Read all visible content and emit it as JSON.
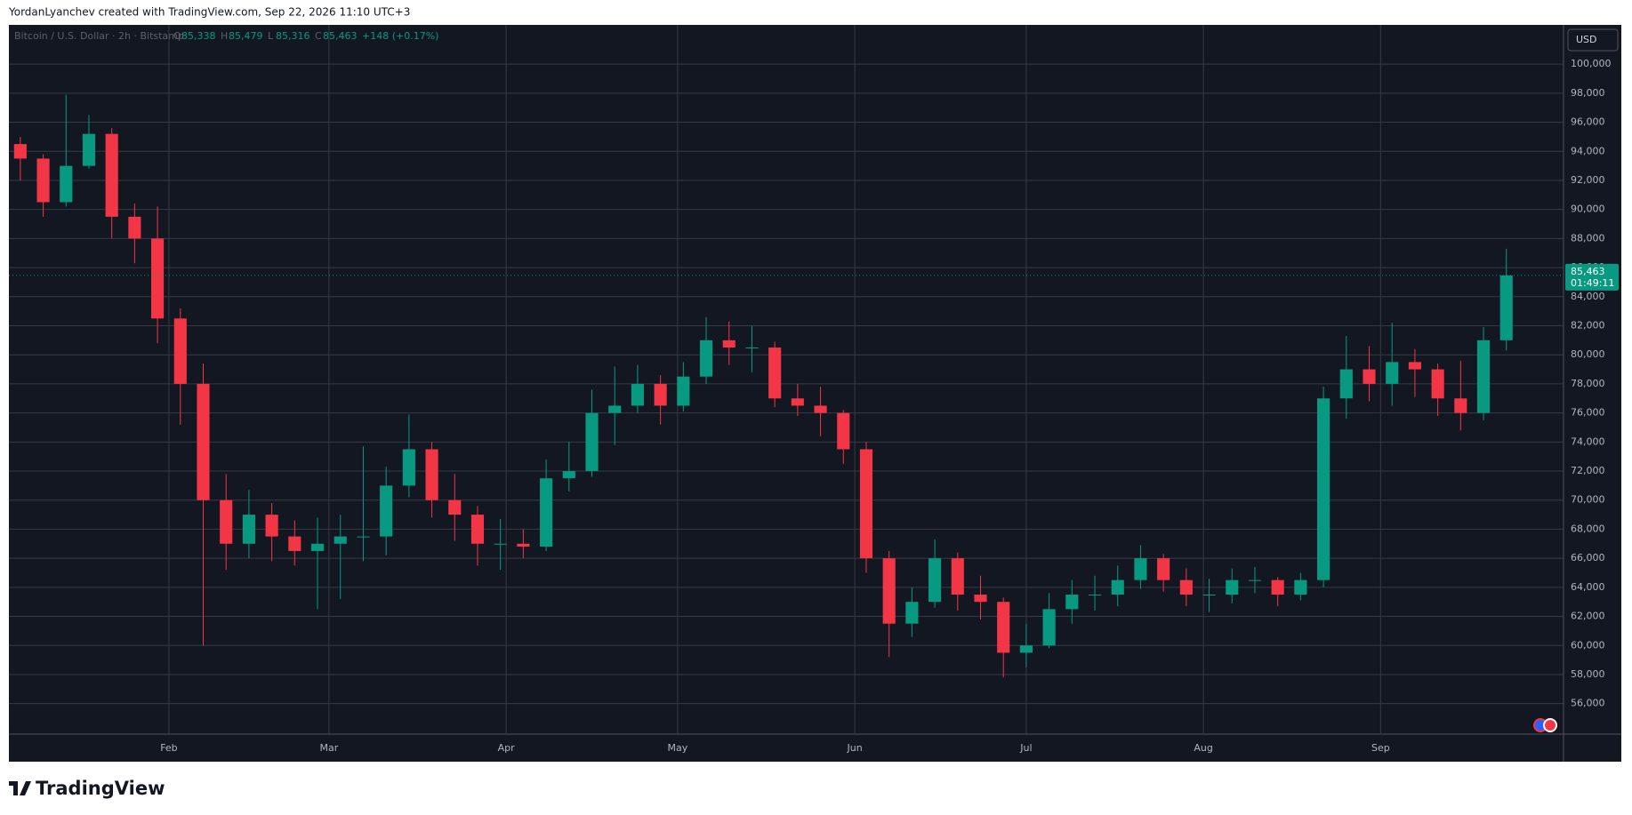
{
  "header": {
    "credit": "YordanLyanchev created with TradingView.com, Sep 22, 2026 11:10 UTC+3",
    "symbol": "Bitcoin / U.S. Dollar · 2h · Bitstamp",
    "ohlc": [
      {
        "label": "O",
        "value": "85,338"
      },
      {
        "label": "H",
        "value": "85,479"
      },
      {
        "label": "L",
        "value": "85,316"
      },
      {
        "label": "C",
        "value": "85,463"
      }
    ],
    "change": "+148 (+0.17%)",
    "currency": "USD",
    "last_price_label": "85,463",
    "countdown": "01:49:11",
    "brand": "TradingView"
  },
  "chart_data": {
    "type": "candlestick",
    "up_color": "#089981",
    "down_color": "#f23645",
    "grid": true,
    "open": [
      94500,
      93500,
      90500,
      93000,
      95200,
      89500,
      88000,
      82500,
      78000,
      70000,
      67000,
      69000,
      67500,
      66500,
      67000,
      67500,
      67500,
      71000,
      73500,
      70000,
      69000,
      67000,
      67000,
      66800,
      71500,
      72000,
      76000,
      76500,
      78000,
      76500,
      78500,
      81000,
      80500,
      80500,
      77000,
      76500,
      76000,
      73500,
      66000,
      61500,
      63000,
      66000,
      63500,
      63000,
      59500,
      60000,
      62500,
      63500,
      63500,
      64500,
      66000,
      64500,
      63500,
      63500,
      64500,
      64500,
      63500,
      64500,
      77000,
      79000,
      78000,
      79500,
      79000,
      77000,
      76000,
      81000
    ],
    "high": [
      95000,
      93800,
      97900,
      96500,
      95600,
      90400,
      90200,
      83200,
      79400,
      71800,
      70700,
      69800,
      68600,
      68800,
      69000,
      73700,
      72300,
      75900,
      74000,
      71800,
      69600,
      68700,
      68000,
      72800,
      74000,
      77600,
      79200,
      79300,
      78600,
      79500,
      82600,
      82300,
      82000,
      80900,
      78000,
      77800,
      76200,
      74000,
      66500,
      64000,
      67300,
      66400,
      64800,
      63300,
      61500,
      63600,
      64500,
      64800,
      65500,
      66900,
      66300,
      65300,
      64600,
      65300,
      65400,
      64700,
      65000,
      77800,
      81300,
      80600,
      82200,
      80400,
      79400,
      79600,
      81900,
      87300
    ],
    "low": [
      92000,
      89500,
      90200,
      92800,
      88000,
      86300,
      80800,
      75200,
      60000,
      65200,
      66000,
      65800,
      65500,
      62500,
      63200,
      65800,
      66200,
      70200,
      68800,
      67200,
      65500,
      65200,
      66000,
      66500,
      70600,
      71600,
      73800,
      76000,
      75200,
      76100,
      78000,
      79300,
      78800,
      76400,
      75800,
      74400,
      72500,
      65000,
      59200,
      60600,
      62600,
      62400,
      61800,
      57800,
      58500,
      59800,
      61500,
      62400,
      62700,
      63900,
      63700,
      62700,
      62300,
      62900,
      63600,
      62700,
      63100,
      64000,
      75600,
      76800,
      76500,
      77100,
      75800,
      74800,
      75500,
      80300
    ],
    "close": [
      93500,
      90500,
      93000,
      95200,
      89500,
      88000,
      82500,
      78000,
      70000,
      67000,
      69000,
      67500,
      66500,
      67000,
      67500,
      67500,
      71000,
      73500,
      70000,
      69000,
      67000,
      67000,
      66800,
      71500,
      72000,
      76000,
      76500,
      78000,
      76500,
      78500,
      81000,
      80500,
      80500,
      77000,
      76500,
      76000,
      73500,
      66000,
      61500,
      63000,
      66000,
      63500,
      63000,
      59500,
      60000,
      62500,
      63500,
      63500,
      64500,
      66000,
      64500,
      63500,
      63500,
      64500,
      64500,
      63500,
      64500,
      77000,
      79000,
      78000,
      79500,
      79000,
      77000,
      76000,
      81000,
      85463
    ],
    "xlim": [
      -0.5,
      67.5
    ],
    "xticks": [
      {
        "value": 6.5,
        "label": "Feb"
      },
      {
        "value": 13.5,
        "label": "Mar"
      },
      {
        "value": 21.25,
        "label": "Apr"
      },
      {
        "value": 28.75,
        "label": "May"
      },
      {
        "value": 36.5,
        "label": "Jun"
      },
      {
        "value": 44,
        "label": "Jul"
      },
      {
        "value": 51.75,
        "label": "Aug"
      },
      {
        "value": 59.5,
        "label": "Sep"
      }
    ],
    "ylim": [
      53900,
      102700
    ],
    "yticks": [
      {
        "value": 56000,
        "label": "56,000"
      },
      {
        "value": 58000,
        "label": "58,000"
      },
      {
        "value": 60000,
        "label": "60,000"
      },
      {
        "value": 62000,
        "label": "62,000"
      },
      {
        "value": 64000,
        "label": "64,000"
      },
      {
        "value": 66000,
        "label": "66,000"
      },
      {
        "value": 68000,
        "label": "68,000"
      },
      {
        "value": 70000,
        "label": "70,000"
      },
      {
        "value": 72000,
        "label": "72,000"
      },
      {
        "value": 74000,
        "label": "74,000"
      },
      {
        "value": 76000,
        "label": "76,000"
      },
      {
        "value": 78000,
        "label": "78,000"
      },
      {
        "value": 80000,
        "label": "80,000"
      },
      {
        "value": 82000,
        "label": "82,000"
      },
      {
        "value": 84000,
        "label": "84,000"
      },
      {
        "value": 86000,
        "label": "86,000"
      },
      {
        "value": 88000,
        "label": "88,000"
      },
      {
        "value": 90000,
        "label": "90,000"
      },
      {
        "value": 92000,
        "label": "92,000"
      },
      {
        "value": 94000,
        "label": "94,000"
      },
      {
        "value": 96000,
        "label": "96,000"
      },
      {
        "value": 98000,
        "label": "98,000"
      },
      {
        "value": 100000,
        "label": "100,000"
      }
    ]
  }
}
